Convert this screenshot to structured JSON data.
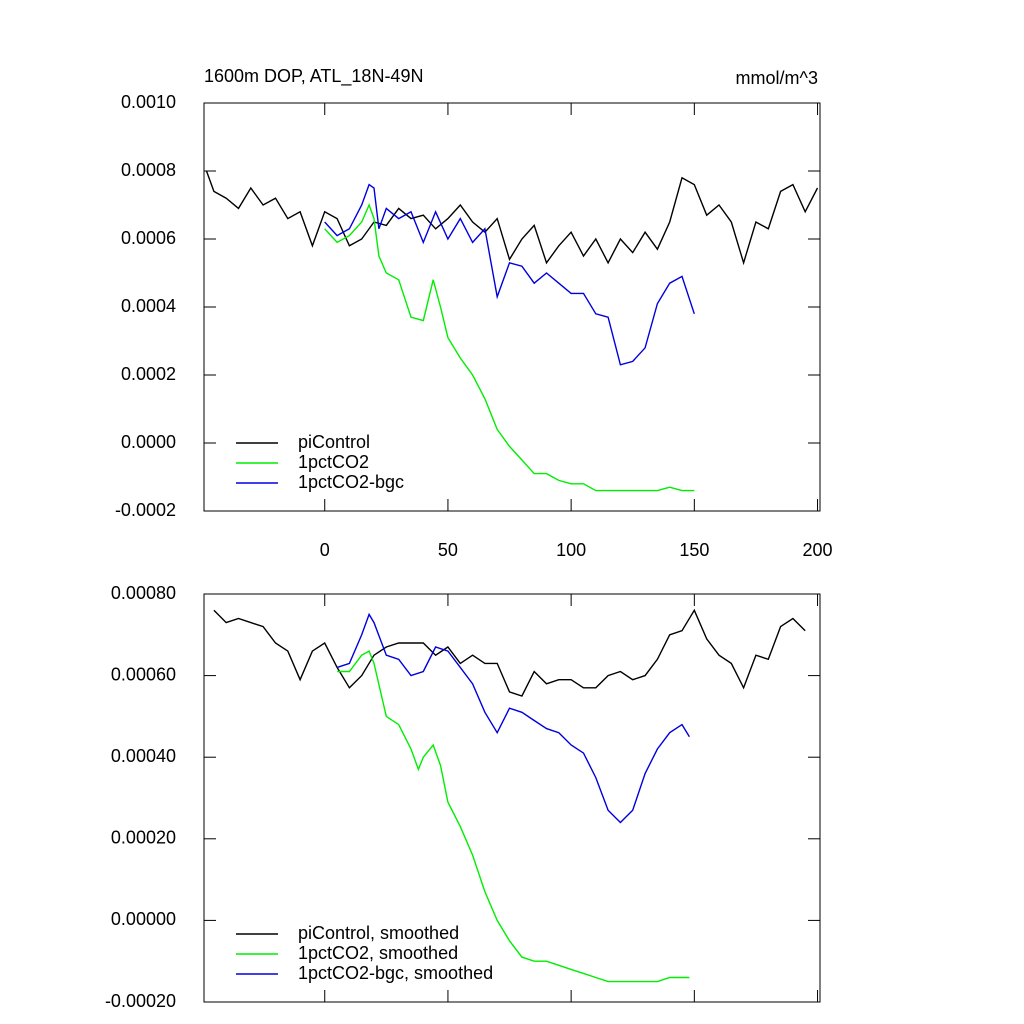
{
  "chart_data": [
    {
      "type": "line",
      "title": "1600m DOP, ATL_18N-49N",
      "units": "mmol/m^3",
      "xlim": [
        -49,
        201
      ],
      "xticks": [
        0,
        50,
        100,
        150,
        200
      ],
      "ylim": [
        -0.0002,
        0.001
      ],
      "yticks": [
        {
          "value": -0.0002,
          "label": "-0.0002"
        },
        {
          "value": 0,
          "label": "0.0000"
        },
        {
          "value": 0.0002,
          "label": "0.0002"
        },
        {
          "value": 0.0004,
          "label": "0.0004"
        },
        {
          "value": 0.0006,
          "label": "0.0006"
        },
        {
          "value": 0.0008,
          "label": "0.0008"
        },
        {
          "value": 0.001,
          "label": "0.0010"
        }
      ],
      "legend": "lower left",
      "series": [
        {
          "name": "piControl",
          "color": "#000000",
          "x": [
            -48,
            -45,
            -40,
            -35,
            -30,
            -25,
            -20,
            -15,
            -10,
            -5,
            0,
            5,
            10,
            15,
            20,
            25,
            30,
            35,
            40,
            45,
            50,
            55,
            60,
            65,
            70,
            75,
            80,
            85,
            90,
            95,
            100,
            105,
            110,
            115,
            120,
            125,
            130,
            135,
            140,
            145,
            150,
            155,
            160,
            165,
            170,
            175,
            180,
            185,
            190,
            195,
            200
          ],
          "values": [
            0.0008,
            0.00074,
            0.00072,
            0.00069,
            0.00075,
            0.0007,
            0.00072,
            0.00066,
            0.00068,
            0.00058,
            0.00068,
            0.00066,
            0.00058,
            0.0006,
            0.00065,
            0.00064,
            0.00069,
            0.00066,
            0.00067,
            0.00063,
            0.00066,
            0.0007,
            0.00065,
            0.00062,
            0.00066,
            0.00054,
            0.0006,
            0.00064,
            0.00053,
            0.00058,
            0.00062,
            0.00055,
            0.0006,
            0.00053,
            0.0006,
            0.00056,
            0.00062,
            0.00057,
            0.00065,
            0.00078,
            0.00076,
            0.00067,
            0.0007,
            0.00065,
            0.00053,
            0.00065,
            0.00063,
            0.00074,
            0.00076,
            0.00068,
            0.00075
          ]
        },
        {
          "name": "1pctCO2",
          "color": "#00ee00",
          "x": [
            0,
            5,
            10,
            15,
            18,
            20,
            22,
            25,
            30,
            35,
            40,
            44,
            47,
            50,
            55,
            60,
            65,
            70,
            75,
            80,
            85,
            90,
            95,
            100,
            105,
            110,
            115,
            120,
            125,
            130,
            135,
            140,
            145,
            150
          ],
          "values": [
            0.00063,
            0.00059,
            0.00061,
            0.00065,
            0.0007,
            0.00066,
            0.00055,
            0.0005,
            0.00048,
            0.00037,
            0.00036,
            0.00048,
            0.0004,
            0.00031,
            0.00025,
            0.0002,
            0.00013,
            4e-05,
            -1e-05,
            -5e-05,
            -9e-05,
            -9e-05,
            -0.00011,
            -0.00012,
            -0.00012,
            -0.00014,
            -0.00014,
            -0.00014,
            -0.00014,
            -0.00014,
            -0.00014,
            -0.00013,
            -0.00014,
            -0.00014
          ]
        },
        {
          "name": "1pctCO2-bgc",
          "color": "#0000dd",
          "x": [
            0,
            5,
            10,
            15,
            18,
            20,
            22,
            25,
            30,
            35,
            40,
            45,
            50,
            55,
            60,
            65,
            70,
            75,
            80,
            85,
            90,
            95,
            100,
            105,
            110,
            115,
            120,
            125,
            130,
            135,
            140,
            145,
            150
          ],
          "values": [
            0.00065,
            0.00061,
            0.00063,
            0.0007,
            0.00076,
            0.00075,
            0.00063,
            0.00069,
            0.00066,
            0.00068,
            0.00059,
            0.00068,
            0.0006,
            0.00066,
            0.00059,
            0.00063,
            0.00043,
            0.00053,
            0.00052,
            0.00047,
            0.0005,
            0.00047,
            0.00044,
            0.00044,
            0.00038,
            0.00037,
            0.00023,
            0.00024,
            0.00028,
            0.00041,
            0.00047,
            0.00049,
            0.00038
          ]
        }
      ]
    },
    {
      "type": "line",
      "xlim": [
        -49,
        201
      ],
      "ylim": [
        -0.0002,
        0.0008
      ],
      "yticks": [
        {
          "value": -0.0002,
          "label": "-0.00020"
        },
        {
          "value": 0,
          "label": "0.00000"
        },
        {
          "value": 0.0002,
          "label": "0.00020"
        },
        {
          "value": 0.0004,
          "label": "0.00040"
        },
        {
          "value": 0.0006,
          "label": "0.00060"
        },
        {
          "value": 0.0008,
          "label": "0.00080"
        }
      ],
      "legend": "lower left",
      "series": [
        {
          "name": "piControl, smoothed",
          "color": "#000000",
          "x": [
            -45,
            -40,
            -35,
            -30,
            -25,
            -20,
            -15,
            -10,
            -5,
            0,
            5,
            10,
            15,
            20,
            25,
            30,
            35,
            40,
            45,
            50,
            55,
            60,
            65,
            70,
            75,
            80,
            85,
            90,
            95,
            100,
            105,
            110,
            115,
            120,
            125,
            130,
            135,
            140,
            145,
            150,
            155,
            160,
            165,
            170,
            175,
            180,
            185,
            190,
            195
          ],
          "values": [
            0.00076,
            0.00073,
            0.00074,
            0.00073,
            0.00072,
            0.00068,
            0.00066,
            0.00059,
            0.00066,
            0.00068,
            0.00062,
            0.00057,
            0.0006,
            0.00065,
            0.00067,
            0.00068,
            0.00068,
            0.00068,
            0.00065,
            0.00067,
            0.00063,
            0.00065,
            0.00063,
            0.00063,
            0.00056,
            0.00055,
            0.00061,
            0.00058,
            0.00059,
            0.00059,
            0.00057,
            0.00057,
            0.0006,
            0.00061,
            0.00059,
            0.0006,
            0.00064,
            0.0007,
            0.00071,
            0.00076,
            0.00069,
            0.00065,
            0.00063,
            0.00057,
            0.00065,
            0.00064,
            0.00072,
            0.00074,
            0.00071
          ]
        },
        {
          "name": "1pctCO2, smoothed",
          "color": "#00ee00",
          "x": [
            5,
            10,
            15,
            18,
            20,
            25,
            30,
            35,
            38,
            40,
            44,
            47,
            50,
            55,
            60,
            65,
            70,
            75,
            80,
            85,
            90,
            95,
            100,
            105,
            110,
            115,
            120,
            125,
            130,
            135,
            140,
            148
          ],
          "values": [
            0.00061,
            0.00061,
            0.00065,
            0.00066,
            0.00063,
            0.0005,
            0.00048,
            0.00042,
            0.00037,
            0.0004,
            0.00043,
            0.00038,
            0.00029,
            0.00023,
            0.00016,
            7e-05,
            0,
            -5e-05,
            -9e-05,
            -0.0001,
            -0.0001,
            -0.00011,
            -0.00012,
            -0.00013,
            -0.00014,
            -0.00015,
            -0.00015,
            -0.00015,
            -0.00015,
            -0.00015,
            -0.00014,
            -0.00014
          ]
        },
        {
          "name": "1pctCO2-bgc, smoothed",
          "color": "#0000dd",
          "x": [
            5,
            10,
            15,
            18,
            20,
            25,
            30,
            35,
            40,
            45,
            50,
            55,
            60,
            65,
            70,
            75,
            80,
            85,
            90,
            95,
            100,
            105,
            110,
            115,
            120,
            125,
            130,
            135,
            140,
            145,
            148
          ],
          "values": [
            0.00062,
            0.00063,
            0.0007,
            0.00075,
            0.00073,
            0.00065,
            0.00064,
            0.0006,
            0.00061,
            0.00067,
            0.00066,
            0.00062,
            0.00058,
            0.00051,
            0.00046,
            0.00052,
            0.00051,
            0.00049,
            0.00047,
            0.00046,
            0.00043,
            0.00041,
            0.00035,
            0.00027,
            0.00024,
            0.00027,
            0.00036,
            0.00042,
            0.00046,
            0.00048,
            0.00045
          ]
        }
      ]
    }
  ]
}
